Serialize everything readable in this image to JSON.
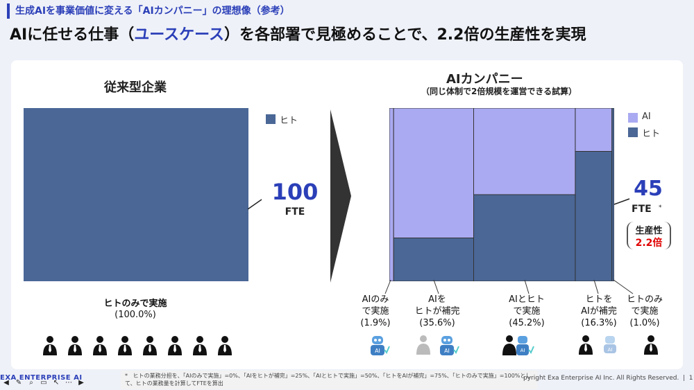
{
  "header": {
    "subtitle": "生成AIを事業価値に変える「AIカンパニー」の理想像（参考）",
    "title_pre": "AIに任せる仕事（",
    "title_highlight": "ユースケース",
    "title_post": "）を各部署で見極めることで、2.2倍の生産性を実現"
  },
  "left": {
    "heading": "従来型企業",
    "legend_human": "ヒト",
    "fte_value": "100",
    "fte_unit": "FTE",
    "caption_line1": "ヒトのみで実施",
    "caption_line2": "(100.0%)"
  },
  "right": {
    "heading": "AIカンパニー",
    "subheading": "（同じ体制で2倍規模を運営できる試算）",
    "legend_ai": "AI",
    "legend_human": "ヒト",
    "fte_value": "45",
    "fte_unit": "FTE",
    "fte_note": "*",
    "productivity_label": "生産性",
    "productivity_value": "2.2倍",
    "categories": [
      {
        "l1": "AIのみ",
        "l2": "で実施",
        "pct": "(1.9%)"
      },
      {
        "l1": "AIを",
        "l2": "ヒトが補完",
        "pct": "(35.6%)"
      },
      {
        "l1": "AIとヒト",
        "l2": "で実施",
        "pct": "(45.2%)"
      },
      {
        "l1": "ヒトを",
        "l2": "AIが補完",
        "pct": "(16.3%)"
      },
      {
        "l1": "ヒトのみ",
        "l2": "で実施",
        "pct": "(1.0%)"
      }
    ]
  },
  "chart_data": {
    "type": "bar",
    "title": "AIカンパニー",
    "categories": [
      "AIのみで実施",
      "AIをヒトが補完",
      "AIとヒトで実施",
      "ヒトをAIが補完",
      "ヒトのみで実施"
    ],
    "widths_percent": [
      1.9,
      35.6,
      45.2,
      16.3,
      1.0
    ],
    "series": [
      {
        "name": "AI",
        "values": [
          100,
          75,
          50,
          25,
          0
        ]
      },
      {
        "name": "ヒト",
        "values": [
          0,
          25,
          50,
          75,
          100
        ]
      }
    ],
    "baseline": {
      "label": "ヒトのみで実施",
      "value": 100.0
    }
  },
  "footer": {
    "logo": "EXA ENTERPRISE AI",
    "footnote_mark": "*",
    "footnote": "ヒトの業務分担を、「AIのみで実施」=0%、「AIをヒトが補完」=25%、「AIとヒトで実施」=50%、「ヒトをAIが補完」=75%、「ヒトのみで実施」=100%として、ヒトの業務量を計算してFTEを算出",
    "copyright": "pyright Exa Enterprise AI Inc. All Rights Reserved.",
    "page": "1"
  },
  "colors": {
    "human": "#4a6796",
    "ai": "#aaaaf2",
    "accent": "#2b3fb8",
    "red": "#e00000"
  }
}
